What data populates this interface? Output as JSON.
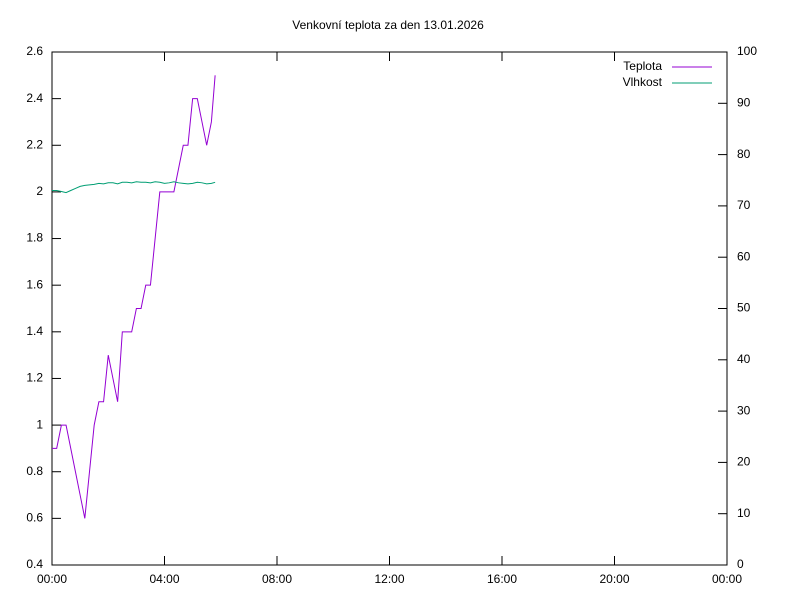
{
  "chart_data": {
    "type": "line",
    "title": "Venkovní teplota za den 13.01.2026",
    "x": [
      0,
      10,
      20,
      30,
      40,
      50,
      60,
      70,
      80,
      90,
      100,
      110,
      120,
      130,
      140,
      150,
      160,
      170,
      180,
      190,
      200,
      210,
      220,
      230,
      240,
      250,
      260,
      270,
      280,
      290,
      300,
      310,
      320,
      330,
      340,
      348
    ],
    "series": [
      {
        "name": "Teplota",
        "color": "#9400d3",
        "values": [
          0.9,
          0.9,
          1.0,
          1.0,
          0.9,
          0.8,
          0.7,
          0.6,
          0.8,
          1.0,
          1.1,
          1.1,
          1.3,
          1.2,
          1.1,
          1.4,
          1.4,
          1.4,
          1.5,
          1.5,
          1.6,
          1.6,
          1.8,
          2.0,
          2.0,
          2.0,
          2.0,
          2.1,
          2.2,
          2.2,
          2.4,
          2.4,
          2.3,
          2.2,
          2.3,
          2.5
        ]
      },
      {
        "name": "Vlhkost",
        "color": "#009e73",
        "axis": "y2",
        "values": [
          73.0,
          73.0,
          72.8,
          72.6,
          73.0,
          73.4,
          73.8,
          74.0,
          74.1,
          74.2,
          74.4,
          74.3,
          74.5,
          74.5,
          74.3,
          74.6,
          74.6,
          74.5,
          74.7,
          74.6,
          74.6,
          74.5,
          74.7,
          74.6,
          74.4,
          74.5,
          74.7,
          74.5,
          74.4,
          74.3,
          74.4,
          74.6,
          74.5,
          74.3,
          74.4,
          74.6
        ]
      }
    ],
    "xlim": [
      0,
      1440
    ],
    "xticks": [
      {
        "value": 0,
        "label": "00:00"
      },
      {
        "value": 240,
        "label": "04:00"
      },
      {
        "value": 480,
        "label": "08:00"
      },
      {
        "value": 720,
        "label": "12:00"
      },
      {
        "value": 960,
        "label": "16:00"
      },
      {
        "value": 1200,
        "label": "20:00"
      },
      {
        "value": 1440,
        "label": "00:00"
      }
    ],
    "ylim": [
      0.4,
      2.6
    ],
    "yticks": [
      0.4,
      0.6,
      0.8,
      1,
      1.2,
      1.4,
      1.6,
      1.8,
      2,
      2.2,
      2.4,
      2.6
    ],
    "y2lim": [
      0,
      100
    ],
    "y2ticks": [
      0,
      10,
      20,
      30,
      40,
      50,
      60,
      70,
      80,
      90,
      100
    ],
    "legend": "top-right"
  }
}
